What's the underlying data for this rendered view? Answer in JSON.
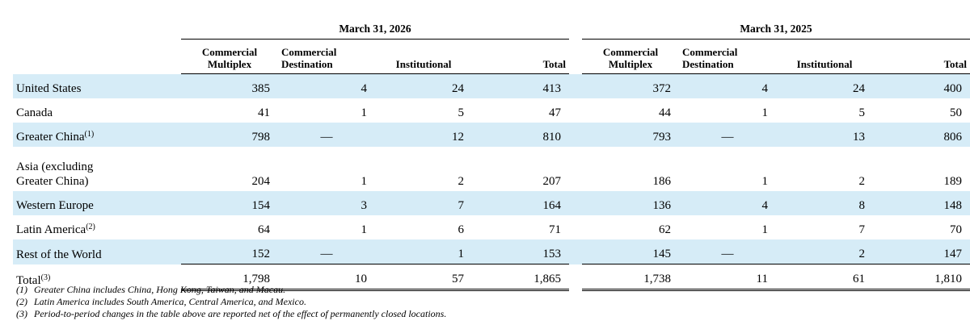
{
  "periods": [
    "March 31, 2026",
    "March 31, 2025"
  ],
  "columns": [
    {
      "line1": "Commercial",
      "line2": "Multiplex"
    },
    {
      "line1": "Commercial",
      "line2": "Destination"
    },
    {
      "line1": "",
      "line2": "Institutional"
    },
    {
      "line1": "",
      "line2": "Total"
    }
  ],
  "rows": [
    {
      "label": "United States",
      "sup": "",
      "values": [
        "385",
        "4",
        "24",
        "413",
        "372",
        "4",
        "24",
        "400"
      ]
    },
    {
      "label": "Canada",
      "sup": "",
      "values": [
        "41",
        "1",
        "5",
        "47",
        "44",
        "1",
        "5",
        "50"
      ]
    },
    {
      "label": "Greater China",
      "sup": "(1)",
      "values": [
        "798",
        "—",
        "12",
        "810",
        "793",
        "—",
        "13",
        "806"
      ]
    },
    {
      "label": "Asia (excluding",
      "label2": "Greater China)",
      "sup": "",
      "values": [
        "204",
        "1",
        "2",
        "207",
        "186",
        "1",
        "2",
        "189"
      ]
    },
    {
      "label": "Western Europe",
      "sup": "",
      "values": [
        "154",
        "3",
        "7",
        "164",
        "136",
        "4",
        "8",
        "148"
      ]
    },
    {
      "label": "Latin America",
      "sup": "(2)",
      "values": [
        "64",
        "1",
        "6",
        "71",
        "62",
        "1",
        "7",
        "70"
      ]
    },
    {
      "label": "Rest of the World",
      "sup": "",
      "values": [
        "152",
        "—",
        "1",
        "153",
        "145",
        "—",
        "2",
        "147"
      ]
    }
  ],
  "total": {
    "label": "Total",
    "sup": "(3)",
    "values": [
      "1,798",
      "10",
      "57",
      "1,865",
      "1,738",
      "11",
      "61",
      "1,810"
    ]
  },
  "footnotes": [
    {
      "marker": "(1)",
      "text": "Greater China includes China, Hong Kong, Taiwan, and Macau."
    },
    {
      "marker": "(2)",
      "text": "Latin America includes South America, Central America, and Mexico."
    },
    {
      "marker": "(3)",
      "text": "Period-to-period changes in the table above are reported net of the effect of permanently closed locations."
    }
  ]
}
